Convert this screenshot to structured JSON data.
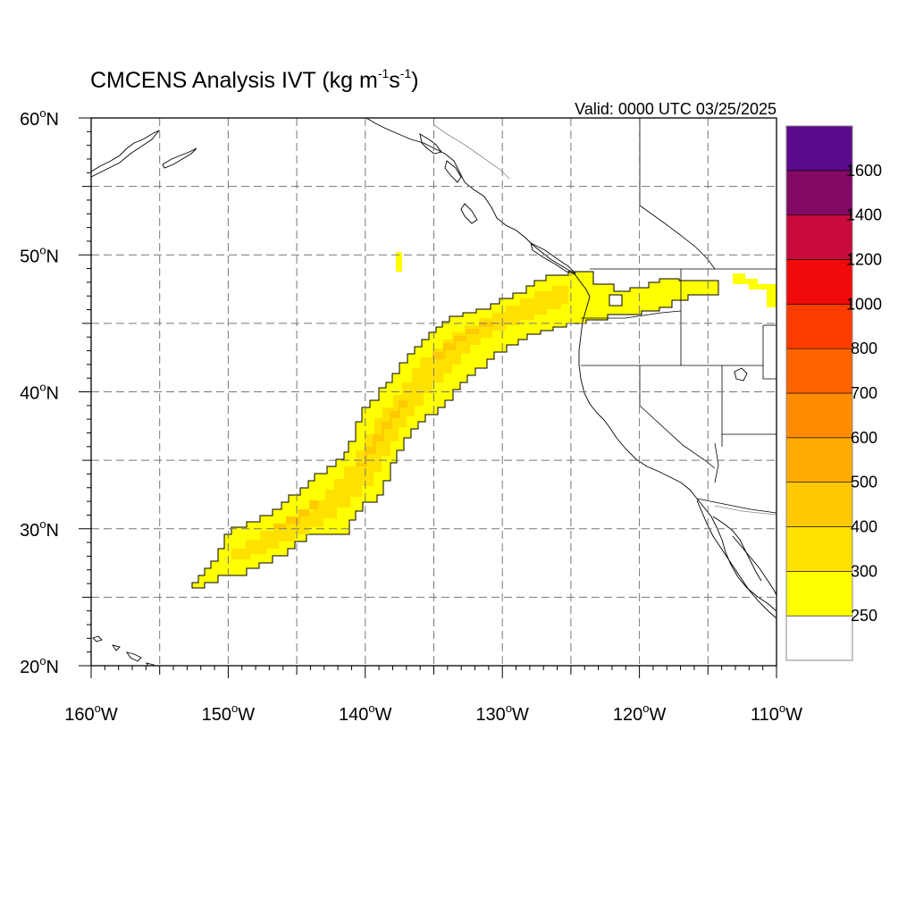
{
  "title": {
    "main": "CMCENS Analysis IVT (kg m",
    "sup1": "-1",
    "mid": "s",
    "sup2": "-1",
    "end": ")"
  },
  "valid_label": "Valid: 0000 UTC 03/25/2025",
  "chart_data": {
    "type": "heatmap",
    "lon_range": [
      -160,
      -110
    ],
    "lat_range": [
      20,
      60
    ],
    "x_ticks": [
      {
        "value": -160,
        "num": "160",
        "hem": "W"
      },
      {
        "value": -150,
        "num": "150",
        "hem": "W"
      },
      {
        "value": -140,
        "num": "140",
        "hem": "W"
      },
      {
        "value": -130,
        "num": "130",
        "hem": "W"
      },
      {
        "value": -120,
        "num": "120",
        "hem": "W"
      },
      {
        "value": -110,
        "num": "110",
        "hem": "W"
      }
    ],
    "y_ticks": [
      {
        "value": 60,
        "num": "60",
        "hem": "N"
      },
      {
        "value": 50,
        "num": "50",
        "hem": "N"
      },
      {
        "value": 40,
        "num": "40",
        "hem": "N"
      },
      {
        "value": 30,
        "num": "30",
        "hem": "N"
      },
      {
        "value": 20,
        "num": "20",
        "hem": "N"
      }
    ],
    "grid_lons": [
      -155,
      -145,
      -135,
      -125,
      -115,
      -150,
      -140,
      -130,
      -120
    ],
    "grid_lats": [
      25,
      35,
      45,
      55,
      30,
      40,
      50
    ],
    "colorbar": {
      "levels": [
        "250",
        "300",
        "400",
        "500",
        "600",
        "700",
        "800",
        "1000",
        "1200",
        "1400",
        "1600"
      ],
      "colors": [
        "#ffffff",
        "#ffff00",
        "#ffe100",
        "#ffc800",
        "#ffaa00",
        "#ff8c00",
        "#ff6400",
        "#ff3c00",
        "#f00a0a",
        "#c80a3c",
        "#820a64",
        "#5a0a8c"
      ]
    },
    "ivt_plume": {
      "levels": {
        "250": "#ffff00",
        "300": "#ffe100",
        "400": "#ffc800"
      }
    }
  }
}
